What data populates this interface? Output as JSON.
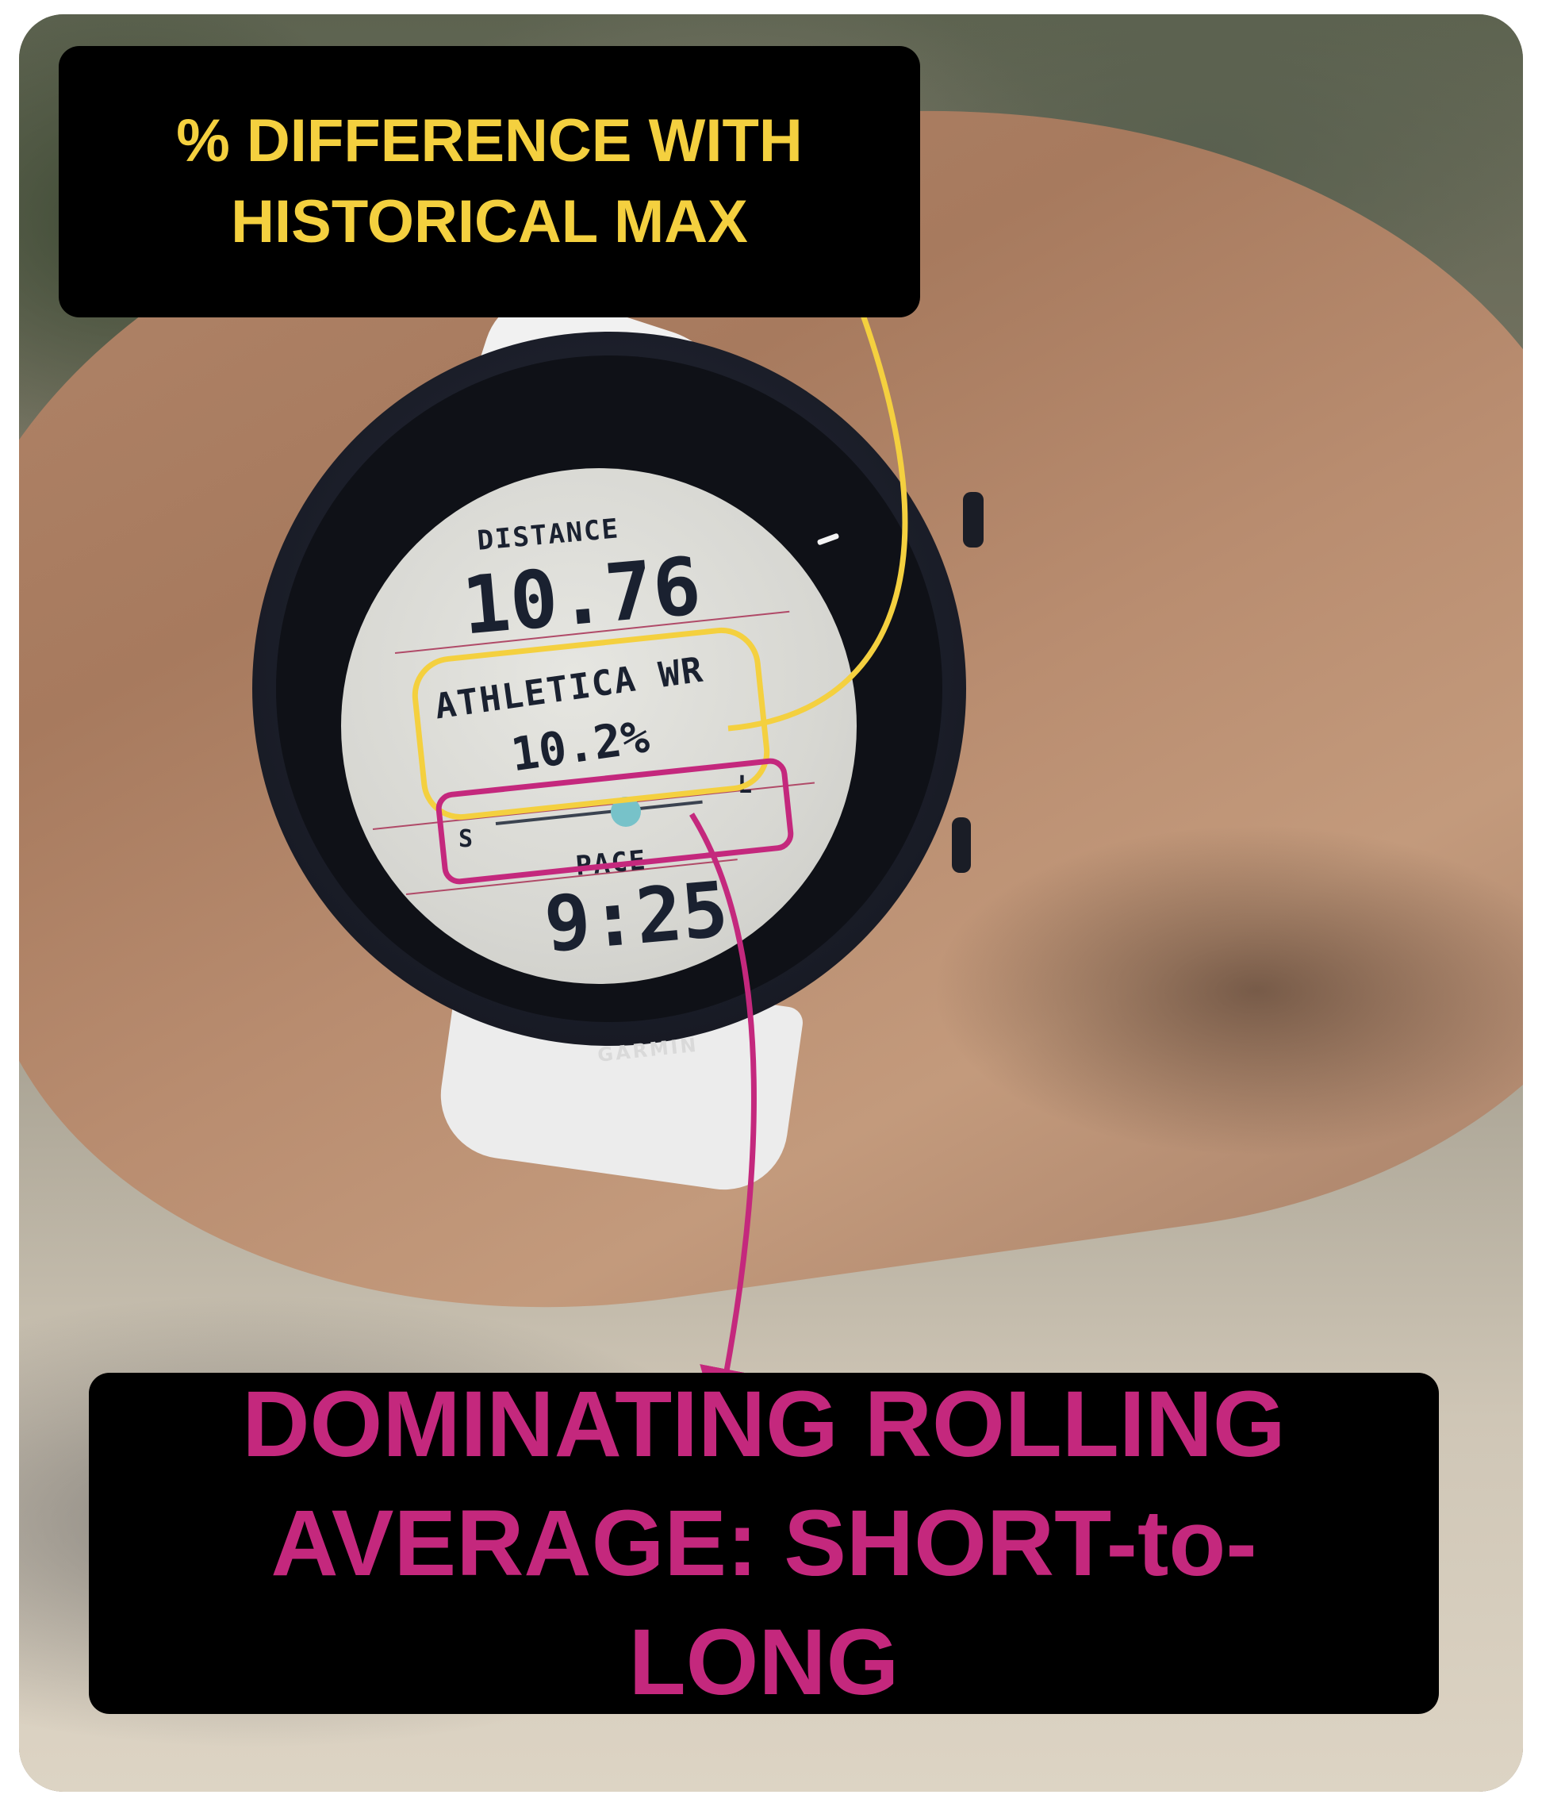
{
  "watch": {
    "distance_label": "DISTANCE",
    "distance_value": "10.76",
    "athletica_label": "ATHLETICA WR",
    "athletica_value": "10.2%",
    "slider_left_label": "S",
    "slider_right_label": "L",
    "pace_label": "PACE",
    "pace_value": "9:25",
    "brand": "GARMIN"
  },
  "callouts": {
    "top_line1": "% DIFFERENCE WITH",
    "top_line2": "HISTORICAL MAX",
    "bottom_line1": "DOMINATING ROLLING",
    "bottom_line2": "AVERAGE: SHORT-to-LONG"
  },
  "colors": {
    "yellow_annotation": "#f4d03f",
    "magenta_annotation": "#c4287d",
    "slider_knob": "#77c2c9",
    "watch_divider": "#b04a68"
  }
}
